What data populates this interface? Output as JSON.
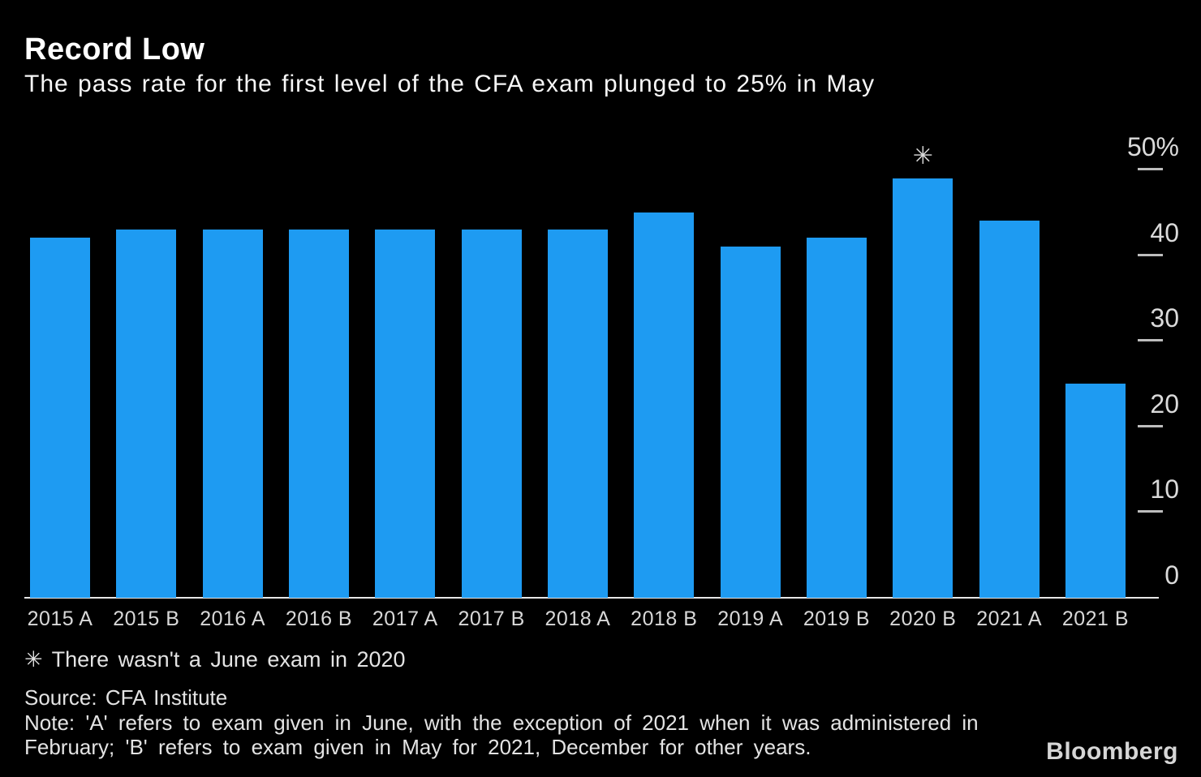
{
  "header": {
    "title": "Record Low",
    "subtitle": "The pass rate for the first level of the CFA exam plunged to 25% in May"
  },
  "chart_data": {
    "type": "bar",
    "categories": [
      "2015 A",
      "2015 B",
      "2016 A",
      "2016 B",
      "2017 A",
      "2017 B",
      "2018 A",
      "2018 B",
      "2019 A",
      "2019 B",
      "2020 B",
      "2021 A",
      "2021 B"
    ],
    "values": [
      42,
      43,
      43,
      43,
      43,
      43,
      43,
      45,
      41,
      42,
      49,
      44,
      25
    ],
    "title": "Record Low",
    "xlabel": "",
    "ylabel": "",
    "ylim": [
      0,
      50
    ],
    "yticks": [
      50,
      40,
      30,
      20,
      10,
      0
    ],
    "ytick_labels": [
      "50%",
      "40",
      "30",
      "20",
      "10",
      "0"
    ],
    "axis_side": "right",
    "grid": false,
    "legend": false,
    "bar_color": "#1e9bf2",
    "background_color": "#000000",
    "annotation": {
      "category": "2020 B",
      "symbol": "✳",
      "meaning": "There wasn't a June exam in 2020"
    }
  },
  "footnote": "✳ There wasn't a June exam in 2020",
  "source": "Source: CFA Institute",
  "note": "Note: 'A' refers to exam given in June, with the exception of 2021 when it was administered in February; 'B' refers to exam given in May for 2021, December for other years.",
  "logo": "Bloomberg"
}
